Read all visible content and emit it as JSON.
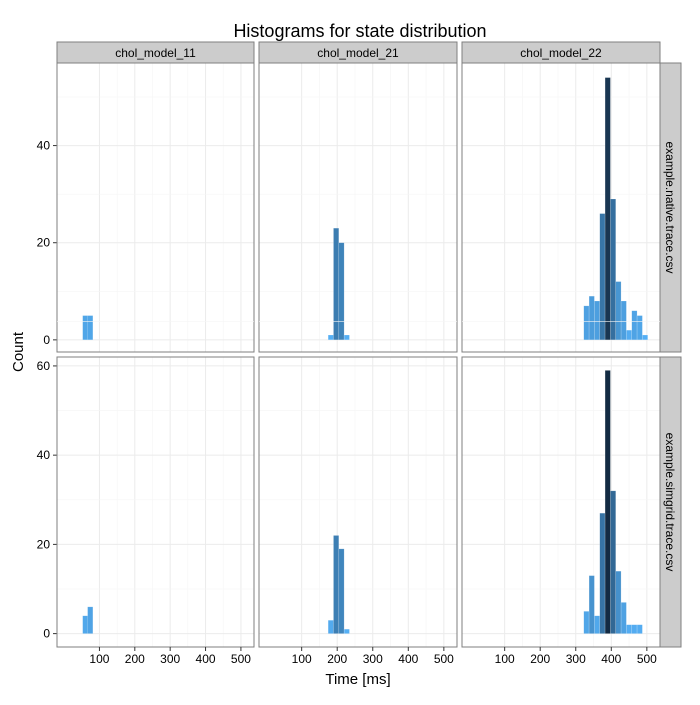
{
  "chart_data": {
    "type": "bar",
    "title": "Histograms for state distribution",
    "xlabel": "Time [ms]",
    "ylabel": "Count",
    "xlim": [
      -20,
      537
    ],
    "x_ticks": [
      100,
      200,
      300,
      400,
      500
    ],
    "grid": true,
    "fill_scale": {
      "low": "#56B1F7",
      "high": "#132B43",
      "by": "count"
    },
    "columns": [
      "chol_model_11",
      "chol_model_21",
      "chol_model_22"
    ],
    "rows": [
      {
        "label": "example.native.trace.csv",
        "ylim": [
          -2.5,
          57
        ],
        "y_ticks": [
          0,
          20,
          40
        ]
      },
      {
        "label": "example.simgrid.trace.csv",
        "ylim": [
          -3,
          62
        ],
        "y_ticks": [
          0,
          20,
          40,
          60
        ]
      }
    ],
    "bin_width": 15,
    "panels": [
      {
        "row": 0,
        "col": 0,
        "x": [
          60,
          74
        ],
        "values": [
          5,
          5
        ]
      },
      {
        "row": 0,
        "col": 1,
        "x": [
          182,
          197,
          212,
          227
        ],
        "values": [
          1,
          23,
          20,
          1
        ]
      },
      {
        "row": 0,
        "col": 2,
        "x": [
          330,
          345,
          360,
          375,
          390,
          405,
          420,
          435,
          450,
          465,
          480,
          495
        ],
        "values": [
          7,
          9,
          8,
          26,
          54,
          29,
          12,
          8,
          2,
          6,
          5,
          1
        ]
      },
      {
        "row": 1,
        "col": 0,
        "x": [
          60,
          74
        ],
        "values": [
          4,
          6
        ]
      },
      {
        "row": 1,
        "col": 1,
        "x": [
          182,
          197,
          212,
          227
        ],
        "values": [
          3,
          22,
          19,
          1
        ]
      },
      {
        "row": 1,
        "col": 2,
        "x": [
          330,
          345,
          360,
          375,
          390,
          405,
          420,
          435,
          450,
          465,
          480
        ],
        "values": [
          5,
          13,
          4,
          27,
          59,
          32,
          14,
          7,
          2,
          2,
          2
        ]
      }
    ]
  }
}
